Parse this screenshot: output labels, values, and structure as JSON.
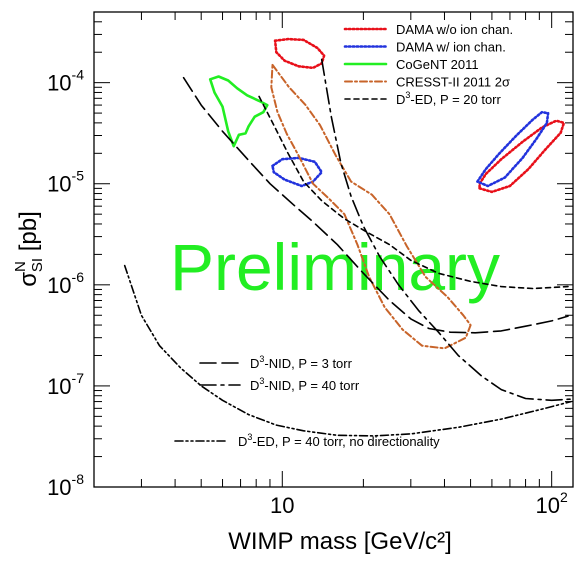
{
  "chart_data": {
    "type": "line",
    "title": "",
    "xlabel": "WIMP mass [GeV/c²]",
    "ylabel": "σ_SI^N [pb]",
    "xscale": "log",
    "yscale": "log",
    "xlim": [
      2,
      120
    ],
    "ylim": [
      1e-08,
      0.0005
    ],
    "x_tick_labels": [
      {
        "value": 10,
        "label": "10"
      },
      {
        "value": 100,
        "label": "10",
        "sup": "2"
      }
    ],
    "y_tick_labels": [
      {
        "value": 1e-08,
        "label": "10",
        "sup": "-8"
      },
      {
        "value": 1e-07,
        "label": "10",
        "sup": "-7"
      },
      {
        "value": 1e-06,
        "label": "10",
        "sup": "-6"
      },
      {
        "value": 1e-05,
        "label": "10",
        "sup": "-5"
      },
      {
        "value": 0.0001,
        "label": "10",
        "sup": "-4"
      }
    ],
    "watermark": "Preliminary",
    "watermark_color": "#22ee22",
    "legend_position": "top-right",
    "series": [
      {
        "name": "DAMA w/o ion chan.",
        "color": "#e8101a",
        "style": "dotted",
        "kind": "closed",
        "points": [
          [
            9.4,
            0.00026
          ],
          [
            10.5,
            0.00027
          ],
          [
            12,
            0.000265
          ],
          [
            13.5,
            0.00022
          ],
          [
            14.3,
            0.000185
          ],
          [
            14,
            0.000155
          ],
          [
            13,
            0.00014
          ],
          [
            11.5,
            0.000145
          ],
          [
            10.2,
            0.000165
          ],
          [
            9.5,
            0.0002
          ],
          [
            9.4,
            0.00026
          ]
        ]
      },
      {
        "name": "DAMA w/o ion chan.",
        "color": "#e8101a",
        "style": "dotted",
        "kind": "closed",
        "points": [
          [
            54,
            9e-06
          ],
          [
            60,
            8.3e-06
          ],
          [
            70,
            9.5e-06
          ],
          [
            82,
            1.4e-05
          ],
          [
            95,
            2.2e-05
          ],
          [
            108,
            3.2e-05
          ],
          [
            111,
            4e-05
          ],
          [
            104,
            4.2e-05
          ],
          [
            92,
            3.6e-05
          ],
          [
            78,
            2.6e-05
          ],
          [
            65,
            1.75e-05
          ],
          [
            57,
            1.25e-05
          ],
          [
            54,
            1e-05
          ],
          [
            54,
            9e-06
          ]
        ]
      },
      {
        "name": "DAMA w/ ion chan.",
        "color": "#2233dd",
        "style": "dotted",
        "kind": "closed",
        "points": [
          [
            9.2,
            1.5e-05
          ],
          [
            10,
            1.75e-05
          ],
          [
            11.5,
            1.8e-05
          ],
          [
            13.2,
            1.65e-05
          ],
          [
            14,
            1.3e-05
          ],
          [
            13,
            1.05e-05
          ],
          [
            11.8,
            9.5e-06
          ],
          [
            10.2,
            1.1e-05
          ],
          [
            9.3,
            1.3e-05
          ],
          [
            9.2,
            1.5e-05
          ]
        ]
      },
      {
        "name": "DAMA w/ ion chan.",
        "color": "#2233dd",
        "style": "dotted",
        "kind": "closed",
        "points": [
          [
            53,
            1.05e-05
          ],
          [
            57,
            1.4e-05
          ],
          [
            64,
            2e-05
          ],
          [
            74,
            3e-05
          ],
          [
            85,
            4.3e-05
          ],
          [
            92,
            5.1e-05
          ],
          [
            97,
            5e-05
          ],
          [
            96,
            4e-05
          ],
          [
            88,
            2.8e-05
          ],
          [
            78,
            1.8e-05
          ],
          [
            67,
            1.15e-05
          ],
          [
            58,
            9.5e-06
          ],
          [
            53,
            1.05e-05
          ]
        ]
      },
      {
        "name": "CoGeNT 2011",
        "color": "#22ee22",
        "style": "solid",
        "kind": "closed",
        "points": [
          [
            5.4,
            0.000108
          ],
          [
            5.8,
            0.000115
          ],
          [
            6.3,
            0.000105
          ],
          [
            6.8,
            8.8e-05
          ],
          [
            7.4,
            7.5e-05
          ],
          [
            8.2,
            6.6e-05
          ],
          [
            8.8,
            6e-05
          ],
          [
            8.5,
            5.1e-05
          ],
          [
            7.9,
            4.6e-05
          ],
          [
            7.5,
            3.7e-05
          ],
          [
            7.3,
            3.15e-05
          ],
          [
            6.9,
            3.05e-05
          ],
          [
            6.6,
            2.35e-05
          ],
          [
            6.3,
            3.3e-05
          ],
          [
            6,
            5.8e-05
          ],
          [
            5.6,
            8e-05
          ],
          [
            5.4,
            0.000108
          ]
        ]
      },
      {
        "name": "CRESST-II 2011 2σ",
        "color": "#c8642a",
        "style": "dashdot",
        "kind": "closed",
        "points": [
          [
            9.2,
            0.00015
          ],
          [
            10.6,
            9e-05
          ],
          [
            12.2,
            6e-05
          ],
          [
            13.8,
            3.8e-05
          ],
          [
            15.8,
            1.9e-05
          ],
          [
            18,
            1.05e-05
          ],
          [
            21.5,
            7.8e-06
          ],
          [
            25,
            5e-06
          ],
          [
            29,
            2.4e-06
          ],
          [
            34,
            1.2e-06
          ],
          [
            41,
            7.6e-07
          ],
          [
            47,
            5e-07
          ],
          [
            50,
            4e-07
          ],
          [
            48,
            3e-07
          ],
          [
            40,
            2.35e-07
          ],
          [
            33,
            2.5e-07
          ],
          [
            28,
            3.6e-07
          ],
          [
            24,
            6e-07
          ],
          [
            21,
            1.2e-06
          ],
          [
            19,
            2.5e-06
          ],
          [
            17,
            5e-06
          ],
          [
            15,
            7e-06
          ],
          [
            13,
            1e-05
          ],
          [
            11.5,
            1.9e-05
          ],
          [
            10.4,
            3.1e-05
          ],
          [
            9.6,
            5.1e-05
          ],
          [
            9.1,
            9e-05
          ],
          [
            9.2,
            0.00015
          ]
        ]
      },
      {
        "name": "D³-ED, P = 20 torr",
        "color": "#000000",
        "style": "dashed",
        "kind": "open",
        "points": [
          [
            8.2,
            7.3e-05
          ],
          [
            9.3,
            3.8e-05
          ],
          [
            10.5,
            2e-05
          ],
          [
            12,
            1.05e-05
          ],
          [
            14,
            6.8e-06
          ],
          [
            17,
            4.5e-06
          ],
          [
            20.5,
            3.35e-06
          ],
          [
            25,
            2.5e-06
          ],
          [
            30,
            1.75e-06
          ],
          [
            38,
            1.3e-06
          ],
          [
            50,
            1.08e-06
          ],
          [
            65,
            9.6e-07
          ],
          [
            85,
            9.2e-07
          ],
          [
            115,
            9.6e-07
          ]
        ]
      },
      {
        "name": "D³-NID, P = 3 torr",
        "color": "#000000",
        "style": "longdash",
        "kind": "open",
        "points": [
          [
            4.3,
            0.000112
          ],
          [
            5,
            6e-05
          ],
          [
            6,
            3.3e-05
          ],
          [
            7.5,
            1.7e-05
          ],
          [
            9,
            1e-05
          ],
          [
            11,
            6.2e-06
          ],
          [
            13,
            4.2e-06
          ],
          [
            16,
            2.5e-06
          ],
          [
            20,
            1.3e-06
          ],
          [
            25,
            7e-07
          ],
          [
            30,
            4.6e-07
          ],
          [
            35,
            3.7e-07
          ],
          [
            42,
            3.4e-07
          ],
          [
            52,
            3.35e-07
          ],
          [
            65,
            3.5e-07
          ],
          [
            80,
            3.9e-07
          ],
          [
            100,
            4.4e-07
          ],
          [
            115,
            4.9e-07
          ]
        ]
      },
      {
        "name": "D³-NID, P = 40 torr",
        "color": "#000000",
        "style": "longdashdot",
        "kind": "open",
        "points": [
          [
            14,
            0.00017
          ],
          [
            15.2,
            4.6e-05
          ],
          [
            16.5,
            1.6e-05
          ],
          [
            18,
            7.5e-06
          ],
          [
            20,
            3.8e-06
          ],
          [
            23,
            1.9e-06
          ],
          [
            27,
            1e-06
          ],
          [
            32,
            5.6e-07
          ],
          [
            38,
            3.4e-07
          ],
          [
            45,
            2e-07
          ],
          [
            55,
            1.25e-07
          ],
          [
            65,
            9.2e-08
          ],
          [
            80,
            7.5e-08
          ],
          [
            100,
            7.2e-08
          ],
          [
            118,
            7.4e-08
          ]
        ]
      },
      {
        "name": "D³-ED, P = 40 torr, no directionality",
        "color": "#000000",
        "style": "dashdotdot",
        "kind": "open",
        "points": [
          [
            2.6,
            1.55e-06
          ],
          [
            3,
            5e-07
          ],
          [
            3.5,
            2.5e-07
          ],
          [
            4.2,
            1.5e-07
          ],
          [
            5,
            1e-07
          ],
          [
            6,
            7.2e-08
          ],
          [
            7.5,
            5.2e-08
          ],
          [
            9.5,
            4.1e-08
          ],
          [
            12,
            3.6e-08
          ],
          [
            16,
            3.25e-08
          ],
          [
            22,
            3.2e-08
          ],
          [
            30,
            3.35e-08
          ],
          [
            45,
            3.9e-08
          ],
          [
            65,
            4.7e-08
          ],
          [
            90,
            5.8e-08
          ],
          [
            118,
            7e-08
          ]
        ]
      }
    ]
  }
}
